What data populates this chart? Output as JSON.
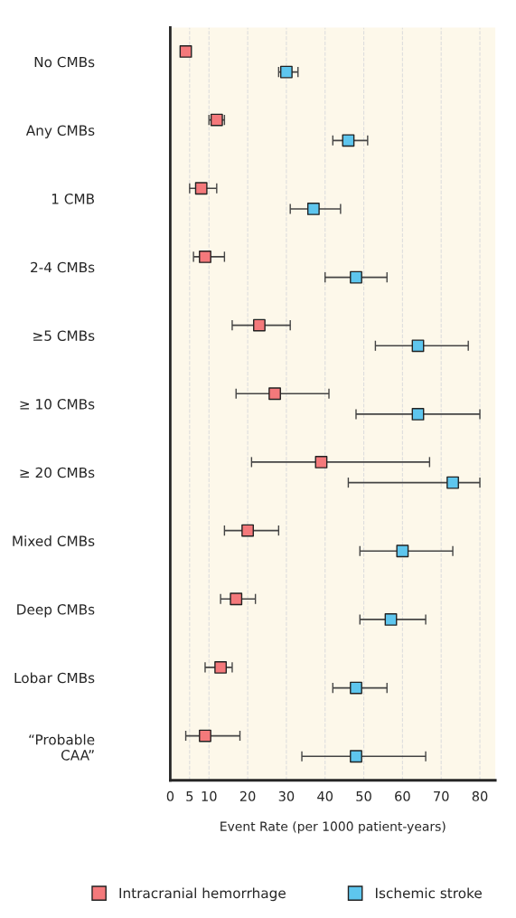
{
  "chart_data": {
    "type": "scatter",
    "orientation": "horizontal",
    "categories": [
      "No CMBs",
      "Any CMBs",
      "1 CMB",
      "2-4 CMBs",
      "≥5 CMBs",
      "≥ 10 CMBs",
      "≥ 20 CMBs",
      "Mixed CMBs",
      "Deep CMBs",
      "Lobar CMBs",
      "“Probable\nCAA”"
    ],
    "xlabel": "Event Rate (per 1000 patient-years)",
    "xlim": [
      0,
      84
    ],
    "xticks": [
      0,
      5,
      10,
      20,
      30,
      40,
      50,
      60,
      70,
      80
    ],
    "grid": "x",
    "legend": "bottom",
    "marker": "square",
    "series": [
      {
        "name": "Intracranial hemorrhage",
        "color": "#f4797b",
        "values": [
          4,
          12,
          8,
          9,
          23,
          27,
          39,
          20,
          17,
          13,
          9
        ],
        "errors": [
          null,
          [
            10,
            14
          ],
          [
            5,
            12
          ],
          [
            6,
            14
          ],
          [
            16,
            31
          ],
          [
            17,
            41
          ],
          [
            21,
            67
          ],
          [
            14,
            28
          ],
          [
            13,
            22
          ],
          [
            9,
            16
          ],
          [
            4,
            18
          ]
        ]
      },
      {
        "name": "Ischemic stroke",
        "color": "#5ec6ee",
        "values": [
          30,
          46,
          37,
          48,
          64,
          64,
          73,
          60,
          57,
          48,
          48
        ],
        "errors": [
          [
            28,
            33
          ],
          [
            42,
            51
          ],
          [
            31,
            44
          ],
          [
            40,
            56
          ],
          [
            53,
            77
          ],
          [
            48,
            80
          ],
          [
            46,
            80
          ],
          [
            49,
            73
          ],
          [
            49,
            66
          ],
          [
            42,
            56
          ],
          [
            34,
            66
          ]
        ]
      }
    ]
  }
}
